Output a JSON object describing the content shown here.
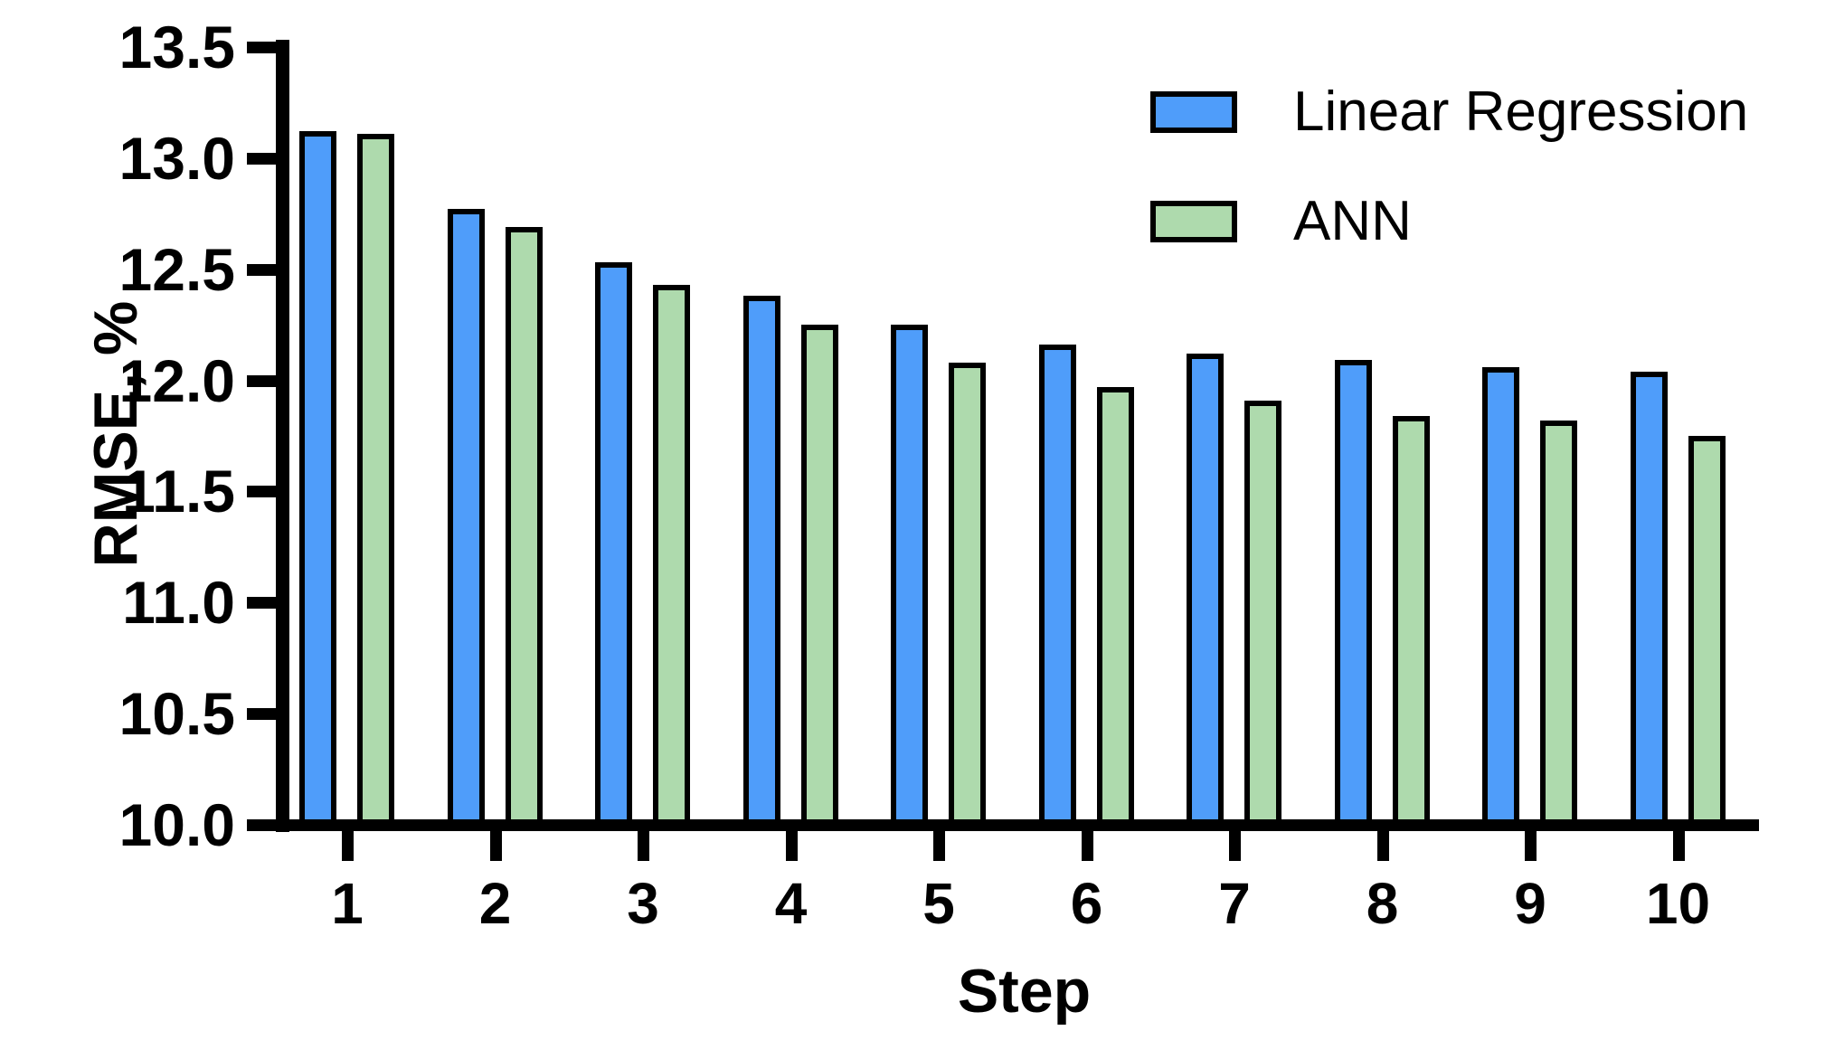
{
  "figure": {
    "x_axis_title": "Step",
    "y_axis_title": "RMSE, %"
  },
  "colors": {
    "linear_regression": "#4F9DFA",
    "ann": "#AEDAAD",
    "axis": "#000000"
  },
  "legend": {
    "position": "top-right",
    "items": [
      {
        "label": "Linear Regression",
        "color": "#4F9DFA"
      },
      {
        "label": "ANN",
        "color": "#AEDAAD"
      }
    ]
  },
  "chart_data": {
    "type": "bar",
    "title": "",
    "xlabel": "Step",
    "ylabel": "RMSE, %",
    "categories": [
      "1",
      "2",
      "3",
      "4",
      "5",
      "6",
      "7",
      "8",
      "9",
      "10"
    ],
    "series": [
      {
        "name": "Linear Regression",
        "color": "#4F9DFA",
        "values": [
          13.12,
          12.77,
          12.53,
          12.38,
          12.25,
          12.16,
          12.12,
          12.09,
          12.06,
          12.04
        ]
      },
      {
        "name": "ANN",
        "color": "#AEDAAD",
        "values": [
          13.11,
          12.69,
          12.43,
          12.25,
          12.08,
          11.97,
          11.91,
          11.84,
          11.82,
          11.75
        ]
      }
    ],
    "ylim": [
      10.0,
      13.5
    ],
    "yticks": [
      10.0,
      10.5,
      11.0,
      11.5,
      12.0,
      12.5,
      13.0,
      13.5
    ],
    "ytick_labels": [
      "10.0",
      "10.5",
      "11.0",
      "11.5",
      "12.0",
      "12.5",
      "13.0",
      "13.5"
    ],
    "grid": false,
    "bar_edge_color": "#000000",
    "legend_position": "top-right"
  }
}
